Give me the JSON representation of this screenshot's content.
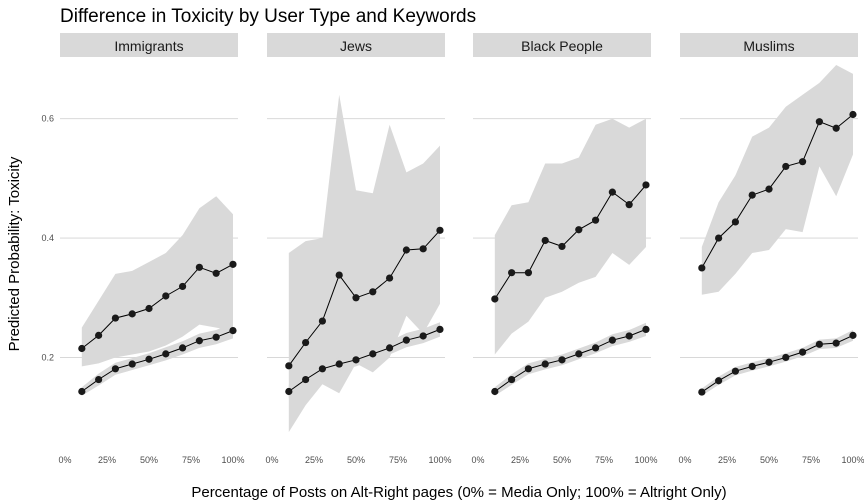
{
  "chart_data": {
    "type": "line",
    "title": "Difference in Toxicity by User Type and Keywords",
    "xlabel": "Percentage of Posts on Alt-Right pages (0% = Media Only; 100% = Altright Only)",
    "ylabel": "Predicted Probability: Toxicity",
    "x_tick_labels": [
      "0%",
      "25%",
      "50%",
      "75%",
      "100%"
    ],
    "x_tick_values": [
      0,
      25,
      50,
      75,
      100
    ],
    "y_tick_labels": [
      "0.2",
      "0.4",
      "0.6"
    ],
    "y_tick_values": [
      0.2,
      0.4,
      0.6
    ],
    "xlim": [
      -3,
      103
    ],
    "ylim": [
      0.05,
      0.7
    ],
    "grid": true,
    "x": [
      10,
      20,
      30,
      40,
      50,
      60,
      70,
      80,
      90,
      100
    ],
    "facets": [
      {
        "label": "Immigrants",
        "series": [
          {
            "values": [
              0.215,
              0.237,
              0.266,
              0.273,
              0.282,
              0.303,
              0.319,
              0.351,
              0.341,
              0.356
            ],
            "lower": [
              0.185,
              0.19,
              0.2,
              0.205,
              0.21,
              0.22,
              0.235,
              0.255,
              0.25,
              0.245
            ],
            "upper": [
              0.25,
              0.295,
              0.34,
              0.345,
              0.36,
              0.375,
              0.405,
              0.45,
              0.47,
              0.44
            ]
          },
          {
            "values": [
              0.143,
              0.163,
              0.181,
              0.189,
              0.197,
              0.206,
              0.216,
              0.228,
              0.234,
              0.245
            ],
            "lower": [
              0.136,
              0.153,
              0.171,
              0.179,
              0.187,
              0.195,
              0.205,
              0.216,
              0.222,
              0.232
            ],
            "upper": [
              0.15,
              0.173,
              0.191,
              0.199,
              0.207,
              0.217,
              0.227,
              0.24,
              0.246,
              0.258
            ]
          }
        ]
      },
      {
        "label": "Jews",
        "series": [
          {
            "values": [
              0.186,
              0.225,
              0.261,
              0.338,
              0.3,
              0.31,
              0.333,
              0.38,
              0.382,
              0.413
            ],
            "lower": [
              0.075,
              0.12,
              0.155,
              0.14,
              0.19,
              0.175,
              0.2,
              0.27,
              0.24,
              0.29
            ],
            "upper": [
              0.375,
              0.395,
              0.4,
              0.64,
              0.48,
              0.475,
              0.59,
              0.51,
              0.525,
              0.555
            ]
          },
          {
            "values": [
              0.143,
              0.163,
              0.181,
              0.189,
              0.196,
              0.206,
              0.216,
              0.229,
              0.236,
              0.247
            ],
            "lower": [
              0.132,
              0.152,
              0.17,
              0.178,
              0.185,
              0.195,
              0.205,
              0.217,
              0.224,
              0.235
            ],
            "upper": [
              0.154,
              0.174,
              0.192,
              0.2,
              0.207,
              0.217,
              0.227,
              0.241,
              0.248,
              0.259
            ]
          }
        ]
      },
      {
        "label": "Black People",
        "series": [
          {
            "values": [
              0.298,
              0.342,
              0.342,
              0.396,
              0.386,
              0.414,
              0.43,
              0.477,
              0.456,
              0.489
            ],
            "lower": [
              0.205,
              0.24,
              0.26,
              0.3,
              0.31,
              0.325,
              0.335,
              0.375,
              0.355,
              0.385
            ],
            "upper": [
              0.405,
              0.455,
              0.46,
              0.525,
              0.525,
              0.535,
              0.59,
              0.6,
              0.585,
              0.6
            ]
          },
          {
            "values": [
              0.143,
              0.163,
              0.181,
              0.189,
              0.196,
              0.206,
              0.216,
              0.229,
              0.236,
              0.247
            ],
            "lower": [
              0.136,
              0.154,
              0.172,
              0.18,
              0.187,
              0.197,
              0.207,
              0.219,
              0.226,
              0.236
            ],
            "upper": [
              0.15,
              0.172,
              0.19,
              0.198,
              0.205,
              0.215,
              0.225,
              0.239,
              0.246,
              0.258
            ]
          }
        ]
      },
      {
        "label": "Muslims",
        "series": [
          {
            "values": [
              0.35,
              0.4,
              0.427,
              0.472,
              0.482,
              0.52,
              0.528,
              0.595,
              0.584,
              0.607
            ],
            "lower": [
              0.305,
              0.31,
              0.34,
              0.375,
              0.38,
              0.415,
              0.41,
              0.52,
              0.47,
              0.54
            ],
            "upper": [
              0.385,
              0.46,
              0.505,
              0.57,
              0.585,
              0.62,
              0.64,
              0.66,
              0.69,
              0.675
            ]
          },
          {
            "values": [
              0.142,
              0.161,
              0.177,
              0.185,
              0.192,
              0.2,
              0.209,
              0.222,
              0.224,
              0.237
            ],
            "lower": [
              0.136,
              0.154,
              0.17,
              0.178,
              0.185,
              0.193,
              0.202,
              0.214,
              0.216,
              0.228
            ],
            "upper": [
              0.148,
              0.168,
              0.184,
              0.192,
              0.199,
              0.207,
              0.216,
              0.23,
              0.232,
              0.246
            ]
          }
        ]
      }
    ],
    "colors": {
      "ribbon": "#d9d9d9",
      "line": "#000000",
      "point": "#1a1a1a",
      "strip": "#d9d9d9",
      "grid": "#d3d3d3"
    }
  }
}
